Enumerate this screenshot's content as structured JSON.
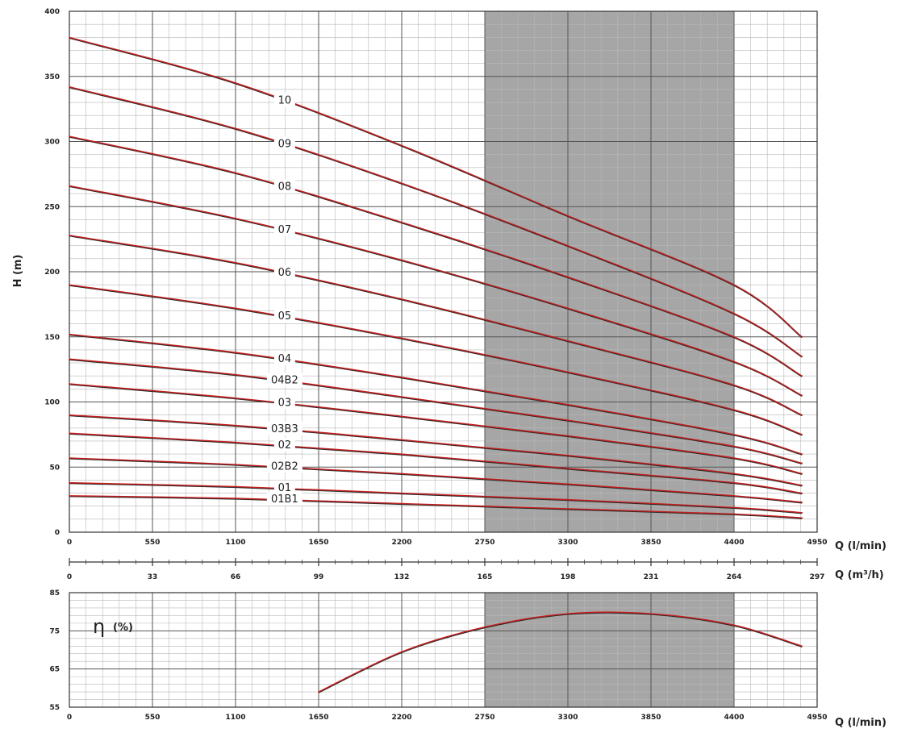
{
  "colors": {
    "curve": "#c81e1e",
    "curve_shadow": "#2a2a2a",
    "grid_minor": "#b8b8b8",
    "grid_major": "#555555",
    "shaded_region": "#a6a6a6",
    "text": "#222222"
  },
  "chart_data": [
    {
      "type": "line",
      "title": "",
      "ylabel": "H (m)",
      "xlabel": "Q (l/min)",
      "xlim": [
        0,
        4950
      ],
      "ylim": [
        0,
        400
      ],
      "x_ticks": [
        0,
        550,
        1100,
        1650,
        2200,
        2750,
        3300,
        3850,
        4400,
        4950
      ],
      "y_ticks": [
        0,
        50,
        100,
        150,
        200,
        250,
        300,
        350,
        400
      ],
      "grid": true,
      "shaded_x_range": [
        2750,
        4400
      ],
      "secondary_x_axis": {
        "label": "Q (m³/h)",
        "ticks": [
          0,
          33,
          66,
          99,
          132,
          165,
          198,
          231,
          264,
          297
        ]
      },
      "series": [
        {
          "name": "10",
          "x": [
            0,
            1100,
            2200,
            3300,
            4400,
            4850
          ],
          "y": [
            380,
            345,
            297,
            243,
            190,
            150
          ]
        },
        {
          "name": "09",
          "x": [
            0,
            1100,
            2200,
            3300,
            4400,
            4850
          ],
          "y": [
            342,
            310,
            268,
            220,
            168,
            135
          ]
        },
        {
          "name": "08",
          "x": [
            0,
            1100,
            2200,
            3300,
            4400,
            4850
          ],
          "y": [
            304,
            276,
            238,
            196,
            150,
            120
          ]
        },
        {
          "name": "07",
          "x": [
            0,
            1100,
            2200,
            3300,
            4400,
            4850
          ],
          "y": [
            266,
            241,
            209,
            172,
            131,
            105
          ]
        },
        {
          "name": "06",
          "x": [
            0,
            1100,
            2200,
            3300,
            4400,
            4850
          ],
          "y": [
            228,
            207,
            179,
            147,
            113,
            90
          ]
        },
        {
          "name": "05",
          "x": [
            0,
            1100,
            2200,
            3300,
            4400,
            4850
          ],
          "y": [
            190,
            172,
            149,
            123,
            94,
            75
          ]
        },
        {
          "name": "04",
          "x": [
            0,
            1100,
            2200,
            3300,
            4400,
            4850
          ],
          "y": [
            152,
            138,
            119,
            98,
            75,
            60
          ]
        },
        {
          "name": "04B2",
          "x": [
            0,
            1100,
            2200,
            3300,
            4400,
            4850
          ],
          "y": [
            133,
            121,
            104,
            86,
            66,
            53
          ]
        },
        {
          "name": "03",
          "x": [
            0,
            1100,
            2200,
            3300,
            4400,
            4850
          ],
          "y": [
            114,
            103,
            89,
            74,
            57,
            45
          ]
        },
        {
          "name": "03B3",
          "x": [
            0,
            1100,
            2200,
            3300,
            4400,
            4850
          ],
          "y": [
            90,
            82,
            71,
            59,
            45,
            36
          ]
        },
        {
          "name": "02",
          "x": [
            0,
            1100,
            2200,
            3300,
            4400,
            4850
          ],
          "y": [
            76,
            69,
            60,
            49,
            38,
            30
          ]
        },
        {
          "name": "02B2",
          "x": [
            0,
            1100,
            2200,
            3300,
            4400,
            4850
          ],
          "y": [
            57,
            52,
            45,
            37,
            28,
            23
          ]
        },
        {
          "name": "01",
          "x": [
            0,
            1100,
            2200,
            3300,
            4400,
            4850
          ],
          "y": [
            38,
            35,
            30,
            25,
            19,
            15
          ]
        },
        {
          "name": "01B1",
          "x": [
            0,
            1100,
            2200,
            3300,
            4400,
            4850
          ],
          "y": [
            28,
            26,
            22,
            18,
            14,
            11
          ]
        }
      ]
    },
    {
      "type": "line",
      "title": "",
      "ylabel": "η (%)",
      "eta_symbol": "η",
      "eta_unit": "(%)",
      "xlabel": "Q (l/min)",
      "xlim": [
        0,
        4950
      ],
      "ylim": [
        55,
        85
      ],
      "x_ticks": [
        0,
        550,
        1100,
        1650,
        2200,
        2750,
        3300,
        3850,
        4400,
        4950
      ],
      "y_ticks": [
        55,
        65,
        75,
        85
      ],
      "grid": true,
      "shaded_x_range": [
        2750,
        4400
      ],
      "series": [
        {
          "x": [
            1650,
            2200,
            2750,
            3300,
            3850,
            4400,
            4850
          ],
          "y": [
            59,
            69.5,
            76,
            79.5,
            79.5,
            76.5,
            71
          ]
        }
      ]
    }
  ]
}
